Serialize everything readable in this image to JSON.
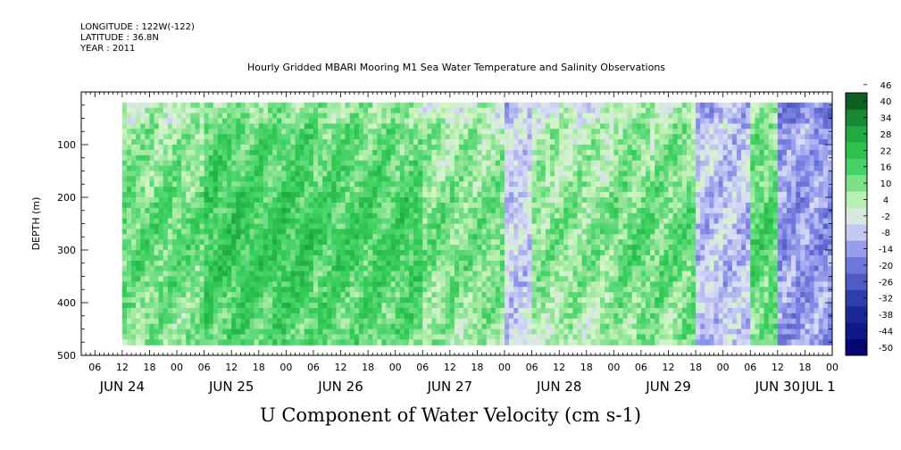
{
  "header": {
    "longitude_line": "LONGITUDE : 122W(-122)",
    "latitude_line": "LATITUDE : 36.8N",
    "year_line": "YEAR : 2011",
    "title": "Hourly Gridded MBARI Mooring M1 Sea Water Temperature and Salinity Observations"
  },
  "footer": {
    "variable_label": "U Component of Water Velocity (cm s-1)"
  },
  "chart_data": {
    "type": "heatmap",
    "title": "Hourly Gridded MBARI Mooring M1 Sea Water Temperature and Salinity Observations",
    "variable": "U Component of Water Velocity (cm s-1)",
    "xlabel": "",
    "ylabel": "DEPTH (m)",
    "x_range_hours_since_jun24_00": [
      3,
      168
    ],
    "ylim": [
      500,
      0
    ],
    "y_ticks": [
      100,
      200,
      300,
      400,
      500
    ],
    "x_hour_tick_labels": [
      "06",
      "12",
      "18",
      "00",
      "06",
      "12",
      "18",
      "00",
      "06",
      "12",
      "18",
      "00",
      "06",
      "12",
      "18",
      "00",
      "06",
      "12",
      "18",
      "00",
      "06",
      "12",
      "18",
      "00",
      "06",
      "12",
      "18",
      "00"
    ],
    "x_day_labels": [
      "JUN 24",
      "JUN 25",
      "JUN 26",
      "JUN 27",
      "JUN 28",
      "JUN 29",
      "JUN 30",
      "JUL 1"
    ],
    "colorbar_levels": [
      -50,
      -44,
      -38,
      -32,
      -26,
      -20,
      -14,
      -8,
      -2,
      4,
      10,
      16,
      22,
      28,
      34,
      40,
      46
    ],
    "colorbar_labels": [
      "46",
      "40",
      "34",
      "28",
      "22",
      "16",
      "10",
      "4",
      "-2",
      "-8",
      "-14",
      "-20",
      "-26",
      "-32",
      "-38",
      "-44",
      "-50"
    ],
    "data_start_hour": 12,
    "depth_range_observed": [
      20,
      480
    ],
    "dominant_range": [
      -14,
      22
    ],
    "colors": {
      "positive_strong": "#1a9e3a",
      "positive": "#33cc55",
      "positive_weak": "#9ee89e",
      "near_zero": "#d5f5c8",
      "negative_weak": "#b0b4f0",
      "negative": "#7f86e6",
      "negative_strong": "#2030a0",
      "missing": "#ffffff"
    },
    "regimes": [
      {
        "from": 12,
        "to": 30,
        "value": 10
      },
      {
        "from": 30,
        "to": 54,
        "value": 16
      },
      {
        "from": 54,
        "to": 78,
        "value": 14
      },
      {
        "from": 78,
        "to": 96,
        "value": 8
      },
      {
        "from": 96,
        "to": 102,
        "value": -2
      },
      {
        "from": 102,
        "to": 120,
        "value": 6
      },
      {
        "from": 120,
        "to": 138,
        "value": 10
      },
      {
        "from": 138,
        "to": 150,
        "value": -4
      },
      {
        "from": 150,
        "to": 156,
        "value": 12
      },
      {
        "from": 156,
        "to": 168,
        "value": -10
      }
    ],
    "grid": false,
    "legend": "colorbar-right"
  }
}
